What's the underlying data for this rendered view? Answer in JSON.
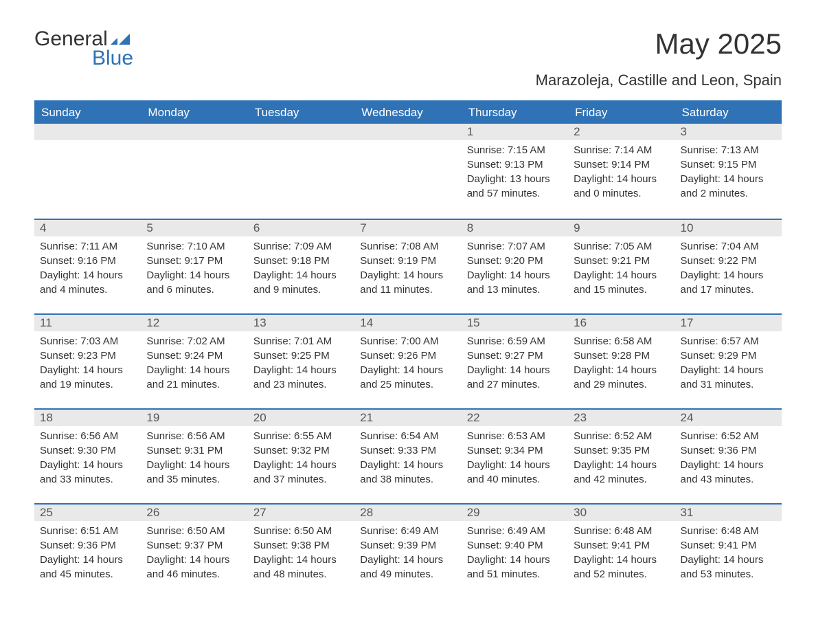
{
  "logo": {
    "word1": "General",
    "word2": "Blue"
  },
  "title": "May 2025",
  "location": "Marazoleja, Castille and Leon, Spain",
  "colors": {
    "header_bg": "#2f72b6",
    "header_text": "#ffffff",
    "daynum_bg": "#e9e9e9",
    "accent": "#2f72b6",
    "body_text": "#333333",
    "page_bg": "#ffffff"
  },
  "weekdays": [
    "Sunday",
    "Monday",
    "Tuesday",
    "Wednesday",
    "Thursday",
    "Friday",
    "Saturday"
  ],
  "weeks": [
    [
      null,
      null,
      null,
      null,
      {
        "n": "1",
        "sunrise": "7:15 AM",
        "sunset": "9:13 PM",
        "daylight": "13 hours and 57 minutes."
      },
      {
        "n": "2",
        "sunrise": "7:14 AM",
        "sunset": "9:14 PM",
        "daylight": "14 hours and 0 minutes."
      },
      {
        "n": "3",
        "sunrise": "7:13 AM",
        "sunset": "9:15 PM",
        "daylight": "14 hours and 2 minutes."
      }
    ],
    [
      {
        "n": "4",
        "sunrise": "7:11 AM",
        "sunset": "9:16 PM",
        "daylight": "14 hours and 4 minutes."
      },
      {
        "n": "5",
        "sunrise": "7:10 AM",
        "sunset": "9:17 PM",
        "daylight": "14 hours and 6 minutes."
      },
      {
        "n": "6",
        "sunrise": "7:09 AM",
        "sunset": "9:18 PM",
        "daylight": "14 hours and 9 minutes."
      },
      {
        "n": "7",
        "sunrise": "7:08 AM",
        "sunset": "9:19 PM",
        "daylight": "14 hours and 11 minutes."
      },
      {
        "n": "8",
        "sunrise": "7:07 AM",
        "sunset": "9:20 PM",
        "daylight": "14 hours and 13 minutes."
      },
      {
        "n": "9",
        "sunrise": "7:05 AM",
        "sunset": "9:21 PM",
        "daylight": "14 hours and 15 minutes."
      },
      {
        "n": "10",
        "sunrise": "7:04 AM",
        "sunset": "9:22 PM",
        "daylight": "14 hours and 17 minutes."
      }
    ],
    [
      {
        "n": "11",
        "sunrise": "7:03 AM",
        "sunset": "9:23 PM",
        "daylight": "14 hours and 19 minutes."
      },
      {
        "n": "12",
        "sunrise": "7:02 AM",
        "sunset": "9:24 PM",
        "daylight": "14 hours and 21 minutes."
      },
      {
        "n": "13",
        "sunrise": "7:01 AM",
        "sunset": "9:25 PM",
        "daylight": "14 hours and 23 minutes."
      },
      {
        "n": "14",
        "sunrise": "7:00 AM",
        "sunset": "9:26 PM",
        "daylight": "14 hours and 25 minutes."
      },
      {
        "n": "15",
        "sunrise": "6:59 AM",
        "sunset": "9:27 PM",
        "daylight": "14 hours and 27 minutes."
      },
      {
        "n": "16",
        "sunrise": "6:58 AM",
        "sunset": "9:28 PM",
        "daylight": "14 hours and 29 minutes."
      },
      {
        "n": "17",
        "sunrise": "6:57 AM",
        "sunset": "9:29 PM",
        "daylight": "14 hours and 31 minutes."
      }
    ],
    [
      {
        "n": "18",
        "sunrise": "6:56 AM",
        "sunset": "9:30 PM",
        "daylight": "14 hours and 33 minutes."
      },
      {
        "n": "19",
        "sunrise": "6:56 AM",
        "sunset": "9:31 PM",
        "daylight": "14 hours and 35 minutes."
      },
      {
        "n": "20",
        "sunrise": "6:55 AM",
        "sunset": "9:32 PM",
        "daylight": "14 hours and 37 minutes."
      },
      {
        "n": "21",
        "sunrise": "6:54 AM",
        "sunset": "9:33 PM",
        "daylight": "14 hours and 38 minutes."
      },
      {
        "n": "22",
        "sunrise": "6:53 AM",
        "sunset": "9:34 PM",
        "daylight": "14 hours and 40 minutes."
      },
      {
        "n": "23",
        "sunrise": "6:52 AM",
        "sunset": "9:35 PM",
        "daylight": "14 hours and 42 minutes."
      },
      {
        "n": "24",
        "sunrise": "6:52 AM",
        "sunset": "9:36 PM",
        "daylight": "14 hours and 43 minutes."
      }
    ],
    [
      {
        "n": "25",
        "sunrise": "6:51 AM",
        "sunset": "9:36 PM",
        "daylight": "14 hours and 45 minutes."
      },
      {
        "n": "26",
        "sunrise": "6:50 AM",
        "sunset": "9:37 PM",
        "daylight": "14 hours and 46 minutes."
      },
      {
        "n": "27",
        "sunrise": "6:50 AM",
        "sunset": "9:38 PM",
        "daylight": "14 hours and 48 minutes."
      },
      {
        "n": "28",
        "sunrise": "6:49 AM",
        "sunset": "9:39 PM",
        "daylight": "14 hours and 49 minutes."
      },
      {
        "n": "29",
        "sunrise": "6:49 AM",
        "sunset": "9:40 PM",
        "daylight": "14 hours and 51 minutes."
      },
      {
        "n": "30",
        "sunrise": "6:48 AM",
        "sunset": "9:41 PM",
        "daylight": "14 hours and 52 minutes."
      },
      {
        "n": "31",
        "sunrise": "6:48 AM",
        "sunset": "9:41 PM",
        "daylight": "14 hours and 53 minutes."
      }
    ]
  ],
  "labels": {
    "sunrise": "Sunrise:",
    "sunset": "Sunset:",
    "daylight": "Daylight:"
  }
}
